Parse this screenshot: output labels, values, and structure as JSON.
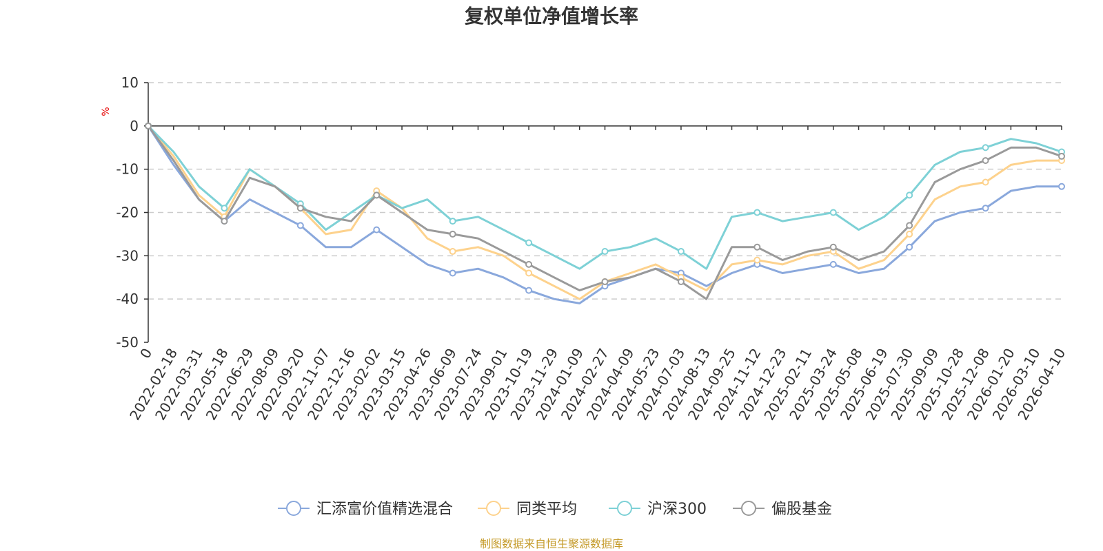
{
  "colors": {
    "fund": "#8aa8dc",
    "peer": "#fdd28d",
    "hs300": "#7ed1d6",
    "equity": "#9a9a9a",
    "axis": "#333333",
    "grid": "#cccccc",
    "source": "#c59b2a"
  },
  "chart_data": {
    "type": "line",
    "title": "复权单位净值增长率",
    "ylabel": "%",
    "ylim": [
      -50,
      10
    ],
    "yticks": [
      10,
      0,
      -10,
      -20,
      -30,
      -40,
      -50
    ],
    "grid": true,
    "legend_position": "bottom",
    "categories": [
      "0",
      "2022-02-18",
      "2022-03-31",
      "2022-05-18",
      "2022-06-29",
      "2022-08-09",
      "2022-09-20",
      "2022-11-07",
      "2022-12-16",
      "2023-02-02",
      "2023-03-15",
      "2023-04-26",
      "2023-06-09",
      "2023-07-24",
      "2023-09-01",
      "2023-10-19",
      "2023-11-29",
      "2024-01-09",
      "2024-02-27",
      "2024-04-09",
      "2024-05-23",
      "2024-07-03",
      "2024-08-13",
      "2024-09-25",
      "2024-11-12",
      "2024-12-23",
      "2025-02-11",
      "2025-03-24",
      "2025-05-08",
      "2025-06-19",
      "2025-07-30",
      "2025-09-09",
      "2025-10-28",
      "2025-12-08",
      "2026-01-20",
      "2026-03-10",
      "2026-04-10"
    ],
    "series": [
      {
        "name": "汇添富价值精选混合",
        "color_key": "fund",
        "values": [
          0,
          -9,
          -17,
          -22,
          -17,
          -20,
          -23,
          -28,
          -28,
          -24,
          -28,
          -32,
          -34,
          -33,
          -35,
          -38,
          -40,
          -41,
          -37,
          -35,
          -33,
          -34,
          -37,
          -34,
          -32,
          -34,
          -33,
          -32,
          -34,
          -33,
          -28,
          -22,
          -20,
          -19,
          -15,
          -14,
          -14
        ]
      },
      {
        "name": "同类平均",
        "color_key": "peer",
        "values": [
          0,
          -7,
          -16,
          -21,
          -10,
          -14,
          -19,
          -25,
          -24,
          -15,
          -19,
          -26,
          -29,
          -28,
          -30,
          -34,
          -37,
          -40,
          -36,
          -34,
          -32,
          -35,
          -38,
          -32,
          -31,
          -32,
          -30,
          -29,
          -33,
          -31,
          -25,
          -17,
          -14,
          -13,
          -9,
          -8,
          -8
        ]
      },
      {
        "name": "沪深300",
        "color_key": "hs300",
        "values": [
          0,
          -6,
          -14,
          -19,
          -10,
          -14,
          -18,
          -24,
          -20,
          -16,
          -19,
          -17,
          -22,
          -21,
          -24,
          -27,
          -30,
          -33,
          -29,
          -28,
          -26,
          -29,
          -33,
          -21,
          -20,
          -22,
          -21,
          -20,
          -24,
          -21,
          -16,
          -9,
          -6,
          -5,
          -3,
          -4,
          -6
        ]
      },
      {
        "name": "偏股基金",
        "color_key": "equity",
        "values": [
          0,
          -8,
          -17,
          -22,
          -12,
          -14,
          -19,
          -21,
          -22,
          -16,
          -20,
          -24,
          -25,
          -26,
          -29,
          -32,
          -35,
          -38,
          -36,
          -35,
          -33,
          -36,
          -40,
          -28,
          -28,
          -31,
          -29,
          -28,
          -31,
          -29,
          -23,
          -13,
          -10,
          -8,
          -5,
          -5,
          -7
        ]
      }
    ]
  },
  "source_text": "制图数据来自恒生聚源数据库"
}
